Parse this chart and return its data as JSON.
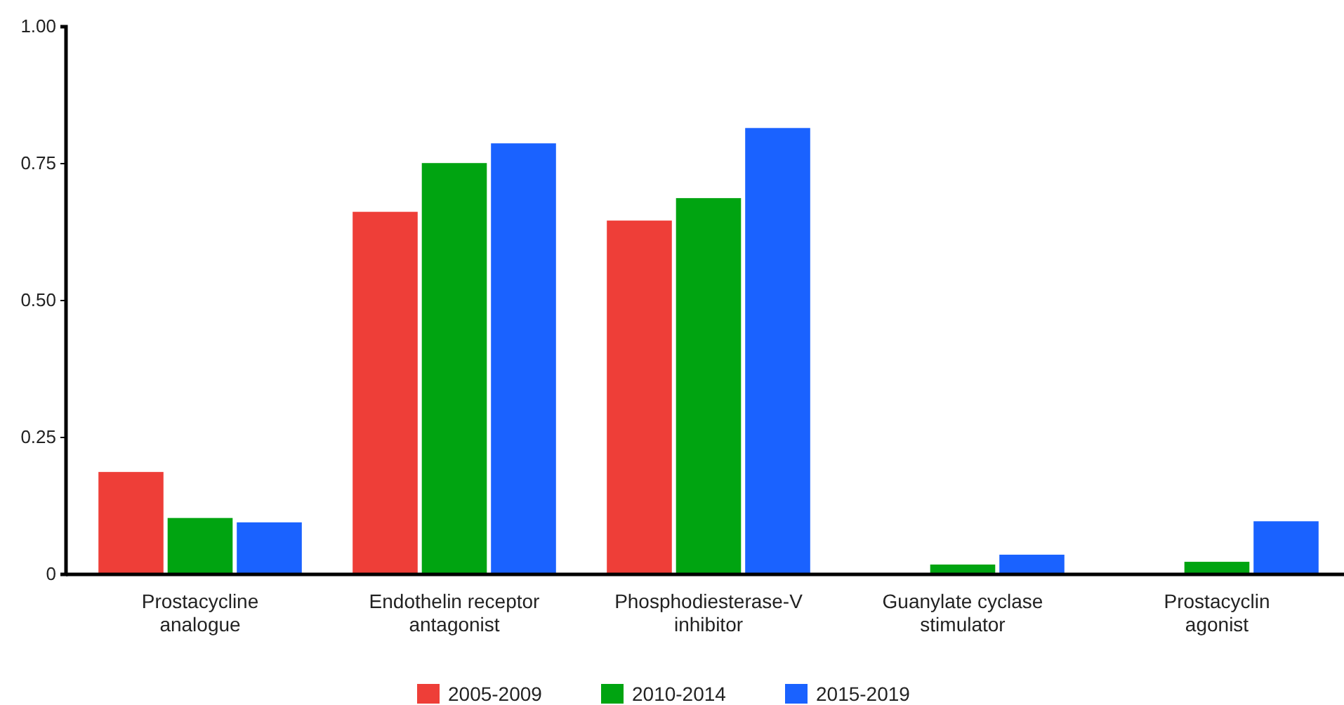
{
  "chart_data": {
    "type": "bar",
    "categories": [
      "Prostacycline analogue",
      "Endothelin receptor antagonist",
      "Phosphodiesterase-V inhibitor",
      "Guanylate cyclase stimulator",
      "Prostacyclin agonist"
    ],
    "series": [
      {
        "name": "2005-2009",
        "color": "#ee3e38",
        "values": [
          0.187,
          0.662,
          0.646,
          0,
          0
        ]
      },
      {
        "name": "2010-2014",
        "color": "#00a411",
        "values": [
          0.103,
          0.751,
          0.687,
          0.018,
          0.023
        ]
      },
      {
        "name": "2015-2019",
        "color": "#1a62ff",
        "values": [
          0.095,
          0.787,
          0.815,
          0.036,
          0.097
        ]
      }
    ],
    "ylim": [
      0,
      1
    ],
    "yticks": [
      {
        "value": 0,
        "label": "0"
      },
      {
        "value": 0.25,
        "label": "0.25"
      },
      {
        "value": 0.5,
        "label": "0.50"
      },
      {
        "value": 0.75,
        "label": "0.75"
      },
      {
        "value": 1,
        "label": "1.00"
      }
    ],
    "grid": false,
    "legend": "bottom"
  }
}
